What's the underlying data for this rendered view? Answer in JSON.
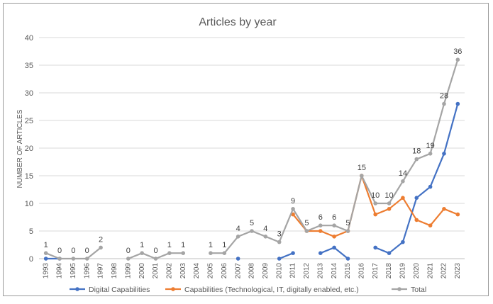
{
  "chart_data": {
    "type": "line",
    "title": "Articles by year",
    "xlabel": "",
    "ylabel": "NUMBER OF ARTICLES",
    "ylim": [
      0,
      40
    ],
    "yticks": [
      0,
      5,
      10,
      15,
      20,
      25,
      30,
      35,
      40
    ],
    "grid": "horizontal",
    "legend_position": "bottom",
    "categories": [
      "1993",
      "1994",
      "1995",
      "1996",
      "1997",
      "1998",
      "1999",
      "2000",
      "2001",
      "2002",
      "2003",
      "2004",
      "2005",
      "2006",
      "2007",
      "2008",
      "2009",
      "2010",
      "2011",
      "2012",
      "2013",
      "2014",
      "2015",
      "2016",
      "2017",
      "2018",
      "2019",
      "2020",
      "2021",
      "2022",
      "2023"
    ],
    "series": [
      {
        "name": "Digital Capabilities",
        "color": "#4472c4",
        "values": [
          0,
          0,
          null,
          null,
          null,
          null,
          null,
          null,
          null,
          null,
          null,
          null,
          null,
          null,
          0,
          null,
          null,
          0,
          1,
          null,
          1,
          2,
          0,
          null,
          2,
          1,
          3,
          11,
          13,
          19,
          28
        ]
      },
      {
        "name": "Capabilities (Technological, IT, digitally enabled, etc.)",
        "color": "#ed7d31",
        "values": [
          null,
          null,
          null,
          null,
          null,
          null,
          null,
          null,
          null,
          null,
          null,
          null,
          null,
          null,
          null,
          null,
          null,
          null,
          8,
          5,
          5,
          4,
          5,
          15,
          8,
          9,
          11,
          7,
          6,
          9,
          8
        ]
      },
      {
        "name": "Total",
        "color": "#a5a5a5",
        "values": [
          1,
          0,
          0,
          0,
          2,
          null,
          0,
          1,
          0,
          1,
          1,
          null,
          1,
          1,
          4,
          5,
          4,
          3,
          9,
          5,
          6,
          6,
          5,
          15,
          10,
          10,
          14,
          18,
          19,
          28,
          36
        ],
        "data_labels": [
          "1",
          "0",
          "0",
          "0",
          "2",
          "",
          "0",
          "1",
          "0",
          "1",
          "1",
          "",
          "1",
          "1",
          "4",
          "5",
          "4",
          "3",
          "9",
          "5",
          "6",
          "6",
          "5",
          "15",
          "10",
          "10",
          "14",
          "18",
          "19",
          "28",
          "36"
        ]
      }
    ]
  }
}
